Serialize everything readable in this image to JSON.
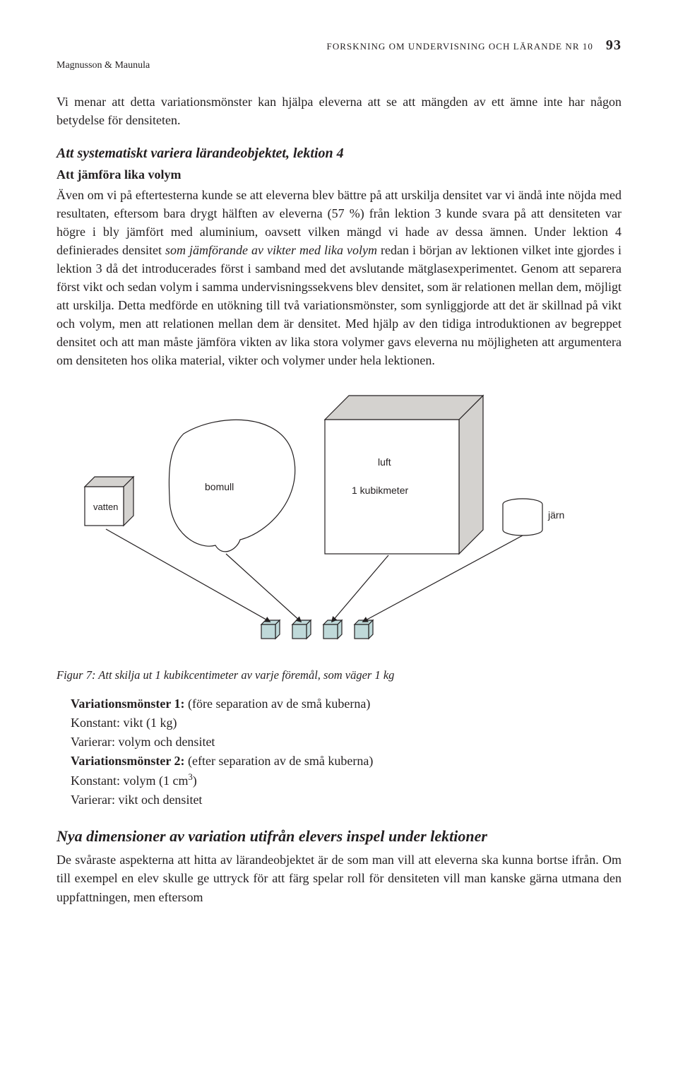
{
  "running_head": "FORSKNING OM UNDERVISNING OCH LÄRANDE  NR 10",
  "authors": "Magnusson & Maunula",
  "page_number": "93",
  "intro_para": "Vi menar att detta variationsmönster kan hjälpa eleverna att se att mängden av ett ämne inte har någon betydelse för densiteten.",
  "section_title": "Att systematiskt variera lärandeobjektet, lektion 4",
  "section_subtitle": "Att jämföra lika volym",
  "main_para_pre": "Även om vi på eftertesterna kunde se att eleverna blev bättre på att urskilja densitet var vi ändå inte nöjda med resultaten, eftersom bara drygt hälften av eleverna (57 %) från lektion 3 kunde svara på att densiteten var högre i bly jämfört med aluminium, oavsett vilken mängd vi hade av dessa ämnen. Under lektion 4 definierades densitet ",
  "main_para_ital": "som jämförande av vikter med lika volym",
  "main_para_post": " redan i början av lektionen vilket inte gjordes i lektion 3 då det introducerades först i samband med det avslutande mätglasexperimentet. Genom att separera först vikt och sedan volym i samma undervisningssekvens blev densitet, som är relationen mellan dem, möjligt att urskilja. Detta medförde en utökning till två variationsmönster, som synliggjorde att det är skillnad på vikt och volym, men att relationen mellan dem är densitet. Med hjälp av den tidiga introduktionen av begreppet densitet och att man måste jämföra vikten av lika stora volymer gavs eleverna nu möjligheten att argumentera om densiteten hos olika material, vikter och volymer under hela lektionen.",
  "figure": {
    "labels": {
      "vatten": "vatten",
      "bomull": "bomull",
      "luft": "luft",
      "kubik": "1 kubikmeter",
      "jarn": "järn"
    },
    "colors": {
      "stroke": "#231f20",
      "fill_side": "#d4d2cf",
      "fill_front": "#ffffff",
      "small_cube_fill": "#bfd9d9",
      "bg": "#ffffff"
    },
    "stroke_width": 1.2,
    "small_cube_count": 4
  },
  "fig_caption": "Figur 7: Att skilja ut 1 kubikcentimeter av varje föremål, som väger 1 kg",
  "vm": {
    "l1b": "Variationsmönster 1: ",
    "l1t": "(före separation av de små kuberna)",
    "l2": "Konstant: vikt (1 kg)",
    "l3": "Varierar: volym och densitet",
    "l4b": "Variationsmönster 2: ",
    "l4t": "(efter separation av de små kuberna)",
    "l5a": "Konstant: volym (1 cm",
    "l5sup": "3",
    "l5b": ")",
    "l6": "Varierar: vikt och densitet"
  },
  "heading2": "Nya dimensioner av variation utifrån elevers inspel under lektioner",
  "closing_para": "De svåraste aspekterna att hitta av lärandeobjektet är de som man vill att eleverna ska kunna bortse ifrån. Om till exempel en elev skulle ge uttryck för att färg spelar roll för densiteten vill man kanske gärna utmana den uppfattningen, men eftersom"
}
